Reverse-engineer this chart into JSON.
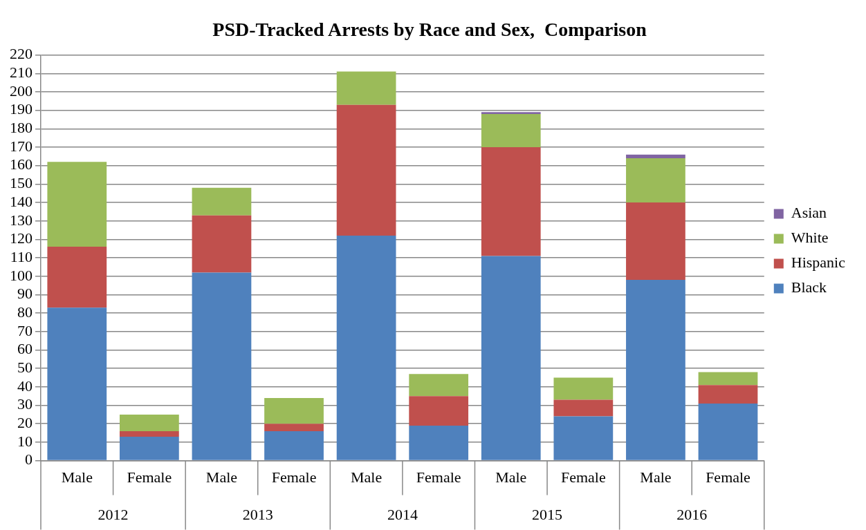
{
  "chart_data": {
    "type": "bar",
    "title": "PSD-Tracked Arrests by Race and Sex,  Comparison",
    "categories": [
      "Male",
      "Female",
      "Male",
      "Female",
      "Male",
      "Female",
      "Male",
      "Female",
      "Male",
      "Female"
    ],
    "annotations": [
      "2012",
      "2013",
      "2014",
      "2015",
      "2016"
    ],
    "stacked": true,
    "series": [
      {
        "name": "Black",
        "color": "#4f81bd",
        "values": [
          83,
          13,
          102,
          16,
          122,
          19,
          111,
          24,
          98,
          31
        ]
      },
      {
        "name": "Hispanic",
        "color": "#c0504d",
        "values": [
          33,
          3,
          31,
          4,
          71,
          16,
          59,
          9,
          42,
          10
        ]
      },
      {
        "name": "White",
        "color": "#9bbb59",
        "values": [
          46,
          9,
          15,
          14,
          18,
          12,
          18,
          12,
          24,
          7
        ]
      },
      {
        "name": "Asian",
        "color": "#8064a2",
        "values": [
          0,
          0,
          0,
          0,
          0,
          0,
          1,
          0,
          2,
          0
        ]
      }
    ],
    "ylim": [
      0,
      220
    ],
    "yticks": [
      0,
      10,
      20,
      30,
      40,
      50,
      60,
      70,
      80,
      90,
      100,
      110,
      120,
      130,
      140,
      150,
      160,
      170,
      180,
      190,
      200,
      210,
      220
    ],
    "grid": "y",
    "legend": "right"
  }
}
